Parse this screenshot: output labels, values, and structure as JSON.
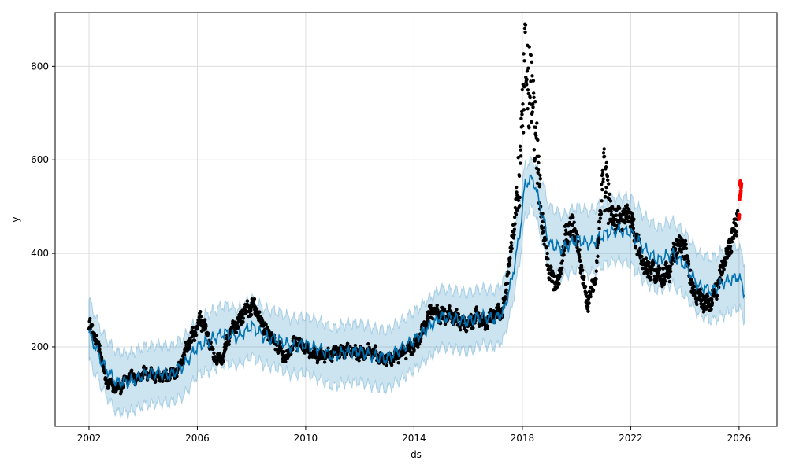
{
  "chart_data": {
    "type": "line",
    "title": "",
    "xlabel": "ds",
    "ylabel": "y",
    "xlim": [
      2000.75,
      2027.4
    ],
    "ylim": [
      30,
      915
    ],
    "grid": true,
    "x_ticks": [
      2002,
      2006,
      2010,
      2014,
      2018,
      2022,
      2026
    ],
    "x_tick_labels": [
      "2002",
      "2006",
      "2010",
      "2014",
      "2018",
      "2022",
      "2026"
    ],
    "y_ticks": [
      200,
      400,
      600,
      800
    ],
    "y_tick_labels": [
      "200",
      "400",
      "600",
      "800"
    ],
    "colors": {
      "forecast_line": "#0072B2",
      "uncertainty_band": "#0072B2",
      "history_points": "#000000",
      "recent_points": "#ff0000",
      "grid": "#dddddd"
    },
    "series": [
      {
        "kind": "forecast",
        "x": [
          2002.0,
          2002.5,
          2003.0,
          2003.5,
          2004.0,
          2004.5,
          2005.0,
          2005.5,
          2006.0,
          2006.5,
          2007.0,
          2007.5,
          2008.0,
          2008.5,
          2009.0,
          2009.5,
          2010.0,
          2010.5,
          2011.0,
          2011.5,
          2012.0,
          2012.5,
          2013.0,
          2013.5,
          2014.0,
          2014.5,
          2015.0,
          2015.5,
          2016.0,
          2016.5,
          2017.0,
          2017.3,
          2017.6,
          2017.9,
          2018.1,
          2018.4,
          2018.7,
          2019.0,
          2019.5,
          2020.0,
          2020.5,
          2021.0,
          2021.5,
          2022.0,
          2022.5,
          2023.0,
          2023.5,
          2024.0,
          2024.5,
          2025.0,
          2025.5,
          2026.0,
          2026.2
        ],
        "yhat": [
          230,
          165,
          125,
          125,
          140,
          145,
          140,
          160,
          200,
          215,
          230,
          220,
          245,
          220,
          215,
          200,
          205,
          195,
          180,
          190,
          190,
          180,
          175,
          195,
          215,
          240,
          265,
          260,
          255,
          265,
          260,
          275,
          340,
          440,
          550,
          560,
          490,
          420,
          410,
          430,
          420,
          440,
          450,
          445,
          410,
          385,
          400,
          375,
          330,
          320,
          340,
          350,
          315
        ],
        "upper": [
          300,
          230,
          190,
          185,
          200,
          205,
          200,
          220,
          260,
          275,
          290,
          280,
          305,
          280,
          275,
          260,
          265,
          255,
          240,
          250,
          250,
          240,
          235,
          255,
          275,
          300,
          325,
          320,
          315,
          325,
          320,
          340,
          405,
          505,
          590,
          600,
          560,
          500,
          480,
          500,
          490,
          510,
          520,
          520,
          480,
          455,
          470,
          445,
          400,
          390,
          410,
          415,
          380
        ],
        "lower": [
          170,
          110,
          60,
          60,
          75,
          80,
          80,
          95,
          140,
          150,
          165,
          160,
          180,
          160,
          155,
          140,
          145,
          130,
          115,
          125,
          125,
          115,
          110,
          130,
          150,
          175,
          200,
          195,
          190,
          205,
          200,
          215,
          280,
          380,
          480,
          500,
          430,
          360,
          350,
          365,
          355,
          375,
          385,
          375,
          340,
          320,
          335,
          310,
          270,
          255,
          270,
          285,
          255
        ]
      },
      {
        "kind": "history",
        "x": [
          2002.0,
          2002.2,
          2002.4,
          2002.6,
          2002.8,
          2003.0,
          2003.2,
          2003.4,
          2003.6,
          2003.8,
          2004.0,
          2004.3,
          2004.6,
          2005.0,
          2005.3,
          2005.6,
          2005.9,
          2006.1,
          2006.3,
          2006.6,
          2006.9,
          2007.2,
          2007.5,
          2007.8,
          2008.1,
          2008.4,
          2008.7,
          2009.0,
          2009.3,
          2009.6,
          2010.0,
          2010.4,
          2010.8,
          2011.2,
          2011.6,
          2012.0,
          2012.4,
          2012.8,
          2013.2,
          2013.6,
          2014.0,
          2014.3,
          2014.6,
          2015.0,
          2015.3,
          2015.6,
          2016.0,
          2016.3,
          2016.6,
          2017.0,
          2017.3,
          2017.6,
          2017.9,
          2018.1,
          2018.4,
          2018.7,
          2019.0,
          2019.3,
          2019.6,
          2019.9,
          2020.1,
          2020.4,
          2020.7,
          2021.0,
          2021.3,
          2021.6,
          2021.9,
          2022.2,
          2022.5,
          2022.8,
          2023.1,
          2023.4,
          2023.7,
          2024.0,
          2024.3,
          2024.6,
          2024.9,
          2025.2,
          2025.5,
          2025.8,
          2025.95
        ],
        "y": [
          250,
          220,
          195,
          130,
          120,
          110,
          115,
          135,
          140,
          130,
          145,
          140,
          135,
          140,
          150,
          200,
          230,
          260,
          240,
          180,
          170,
          230,
          250,
          280,
          285,
          250,
          220,
          200,
          175,
          215,
          195,
          185,
          180,
          190,
          195,
          185,
          190,
          175,
          175,
          190,
          200,
          230,
          280,
          265,
          270,
          260,
          245,
          265,
          250,
          270,
          280,
          420,
          560,
          800,
          720,
          480,
          360,
          330,
          440,
          460,
          400,
          290,
          350,
          560,
          480,
          470,
          490,
          430,
          370,
          365,
          350,
          360,
          420,
          410,
          320,
          300,
          290,
          330,
          390,
          440,
          475
        ]
      },
      {
        "kind": "recent",
        "x": [
          2026.0,
          2026.02,
          2026.04,
          2026.06,
          2026.08
        ],
        "y": [
          478,
          520,
          550,
          530,
          545
        ]
      }
    ]
  }
}
